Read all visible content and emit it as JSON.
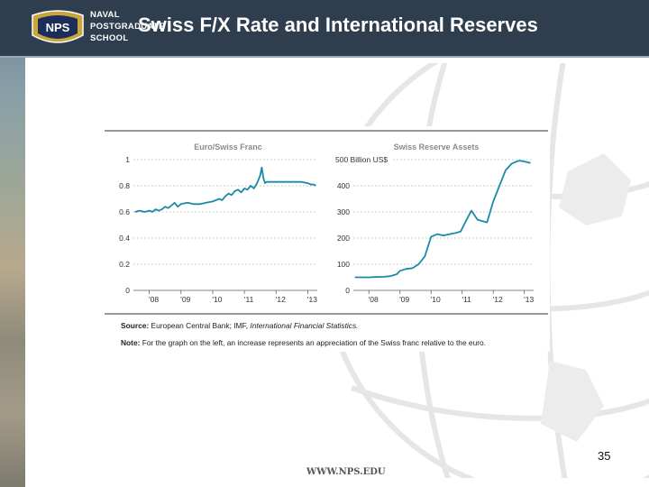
{
  "header": {
    "title": "Swiss F/X Rate and International Reserves",
    "school_lines": [
      "NAVAL",
      "POSTGRADUATE",
      "SCHOOL"
    ],
    "logo_text": "NPS",
    "background": "#2e3e4f"
  },
  "chart_data": [
    {
      "type": "line",
      "title": "Euro/Swiss Franc",
      "x_ticks": [
        "'08",
        "'09",
        "'10",
        "'11",
        "'12",
        "'13"
      ],
      "y_ticks": [
        "0",
        "0.2",
        "0.4",
        "0.6",
        "0.8",
        "1"
      ],
      "ylim": [
        0,
        1
      ],
      "xlim": [
        2007.5,
        2013.3
      ],
      "grid": true,
      "color": "#1a8aa6",
      "series": [
        {
          "x": [
            2007.55,
            2007.7,
            2007.85,
            2008.0,
            2008.1,
            2008.2,
            2008.3,
            2008.4,
            2008.5,
            2008.6,
            2008.7,
            2008.8,
            2008.9,
            2009.0,
            2009.2,
            2009.4,
            2009.6,
            2009.8,
            2010.0,
            2010.2,
            2010.3,
            2010.4,
            2010.5,
            2010.6,
            2010.7,
            2010.8,
            2010.9,
            2011.0,
            2011.1,
            2011.2,
            2011.3,
            2011.4,
            2011.5,
            2011.55,
            2011.6,
            2011.65,
            2011.7,
            2011.8,
            2012.0,
            2012.2,
            2012.4,
            2012.6,
            2012.8,
            2013.0,
            2013.1,
            2013.2,
            2013.25
          ],
          "y": [
            0.6,
            0.61,
            0.6,
            0.61,
            0.6,
            0.62,
            0.61,
            0.62,
            0.64,
            0.63,
            0.65,
            0.67,
            0.64,
            0.66,
            0.67,
            0.66,
            0.66,
            0.67,
            0.68,
            0.7,
            0.69,
            0.72,
            0.74,
            0.73,
            0.76,
            0.77,
            0.75,
            0.78,
            0.77,
            0.8,
            0.78,
            0.82,
            0.88,
            0.94,
            0.86,
            0.82,
            0.83,
            0.83,
            0.83,
            0.83,
            0.83,
            0.83,
            0.83,
            0.82,
            0.81,
            0.81,
            0.8
          ]
        }
      ]
    },
    {
      "type": "line",
      "title": "Swiss Reserve Assets",
      "unit_label": "500 Billion US$",
      "x_ticks": [
        "'08",
        "'09",
        "'10",
        "'11",
        "'12",
        "'13"
      ],
      "y_ticks": [
        "0",
        "100",
        "200",
        "300",
        "400"
      ],
      "ylim": [
        0,
        500
      ],
      "xlim": [
        2007.5,
        2013.3
      ],
      "grid": true,
      "color": "#1a8aa6",
      "series": [
        {
          "x": [
            2007.55,
            2008.0,
            2008.2,
            2008.5,
            2008.7,
            2008.9,
            2009.0,
            2009.2,
            2009.4,
            2009.6,
            2009.8,
            2010.0,
            2010.2,
            2010.4,
            2010.6,
            2010.8,
            2010.95,
            2011.1,
            2011.3,
            2011.5,
            2011.65,
            2011.8,
            2012.0,
            2012.2,
            2012.4,
            2012.6,
            2012.7,
            2012.8,
            2012.9,
            2013.1,
            2013.2
          ],
          "y": [
            50,
            50,
            51,
            52,
            55,
            62,
            75,
            82,
            85,
            100,
            130,
            205,
            215,
            210,
            215,
            220,
            225,
            260,
            305,
            270,
            265,
            260,
            340,
            400,
            460,
            485,
            490,
            495,
            495,
            490,
            487
          ]
        }
      ]
    }
  ],
  "source_label": "Source:",
  "source_text": "European Central Bank; IMF,",
  "source_italic": "International Financial Statistics.",
  "note_label": "Note:",
  "note_text": "For the graph on the left, an increase represents an appreciation of the Swiss franc relative to the euro.",
  "footer": "WWW.NPS.EDU",
  "page_number": "35"
}
